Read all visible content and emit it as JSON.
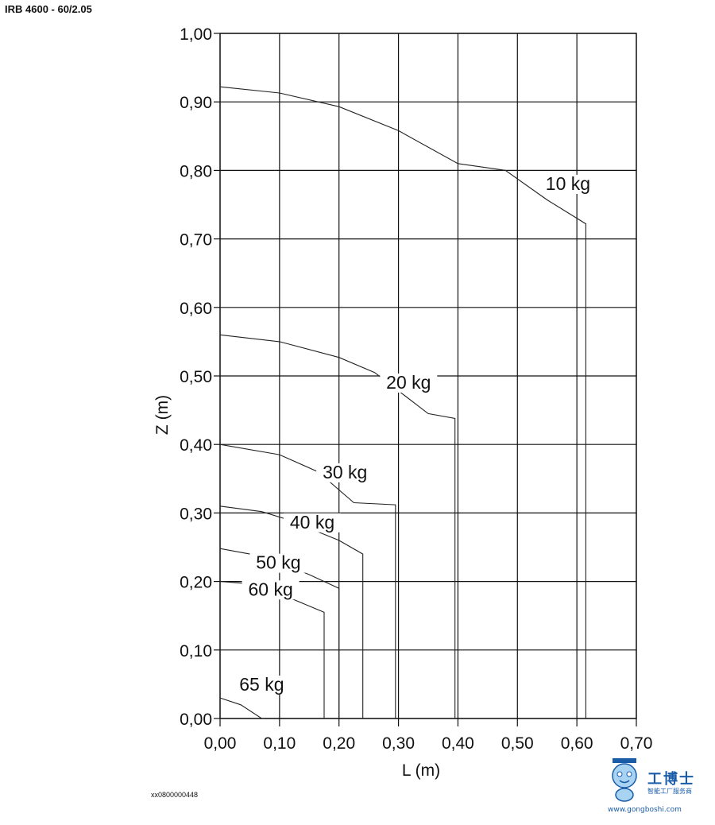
{
  "header": {
    "title": "IRB 4600 - 60/2.05"
  },
  "footer": {
    "doc_code": "xx0800000448"
  },
  "watermark": {
    "title": "工博士",
    "subtitle": "智能工厂服务商",
    "url": "www.gongboshi.com"
  },
  "chart_data": {
    "type": "line",
    "title": "IRB 4600 - 60/2.05",
    "xlabel": "L (m)",
    "ylabel": "Z (m)",
    "xlim": [
      0,
      0.7
    ],
    "ylim": [
      0,
      1.0
    ],
    "xticks": [
      "0,00",
      "0,10",
      "0,20",
      "0,30",
      "0,40",
      "0,50",
      "0,60",
      "0,70"
    ],
    "yticks": [
      "0,00",
      "0,10",
      "0,20",
      "0,30",
      "0,40",
      "0,50",
      "0,60",
      "0,70",
      "0,80",
      "0,90",
      "1,00"
    ],
    "grid": true,
    "series": [
      {
        "name": "10 kg",
        "points": [
          [
            0,
            0.922
          ],
          [
            0.1,
            0.913
          ],
          [
            0.2,
            0.893
          ],
          [
            0.3,
            0.858
          ],
          [
            0.4,
            0.81
          ],
          [
            0.48,
            0.8
          ],
          [
            0.55,
            0.757
          ],
          [
            0.615,
            0.722
          ],
          [
            0.615,
            0
          ]
        ],
        "label_at": [
          0.585,
          0.775
        ]
      },
      {
        "name": "20 kg",
        "points": [
          [
            0,
            0.56
          ],
          [
            0.1,
            0.55
          ],
          [
            0.2,
            0.527
          ],
          [
            0.26,
            0.505
          ],
          [
            0.35,
            0.445
          ],
          [
            0.395,
            0.438
          ],
          [
            0.395,
            0
          ]
        ],
        "label_at": [
          0.317,
          0.485
        ]
      },
      {
        "name": "30 kg",
        "points": [
          [
            0,
            0.4
          ],
          [
            0.1,
            0.385
          ],
          [
            0.165,
            0.36
          ],
          [
            0.225,
            0.315
          ],
          [
            0.295,
            0.312
          ],
          [
            0.295,
            0
          ]
        ],
        "label_at": [
          0.21,
          0.354
        ]
      },
      {
        "name": "40 kg",
        "points": [
          [
            0,
            0.31
          ],
          [
            0.07,
            0.302
          ],
          [
            0.115,
            0.29
          ],
          [
            0.2,
            0.26
          ],
          [
            0.24,
            0.24
          ],
          [
            0.24,
            0
          ]
        ],
        "label_at": [
          0.155,
          0.281
        ]
      },
      {
        "name": "50 kg",
        "points": [
          [
            0,
            0.248
          ],
          [
            0.05,
            0.24
          ],
          [
            0.095,
            0.23
          ],
          [
            0.15,
            0.21
          ],
          [
            0.2,
            0.19
          ],
          [
            0.2,
            0
          ]
        ],
        "label_at": [
          0.098,
          0.222
        ]
      },
      {
        "name": "60 kg",
        "points": [
          [
            0,
            0.2
          ],
          [
            0.045,
            0.197
          ],
          [
            0.08,
            0.19
          ],
          [
            0.12,
            0.175
          ],
          [
            0.175,
            0.155
          ],
          [
            0.175,
            0
          ]
        ],
        "label_at": [
          0.085,
          0.183
        ]
      },
      {
        "name": "65 kg",
        "points": [
          [
            0,
            0.03
          ],
          [
            0.035,
            0.02
          ],
          [
            0.07,
            0.0
          ],
          [
            0.075,
            0.0
          ]
        ],
        "label_at": [
          0.07,
          0.044
        ]
      }
    ]
  }
}
